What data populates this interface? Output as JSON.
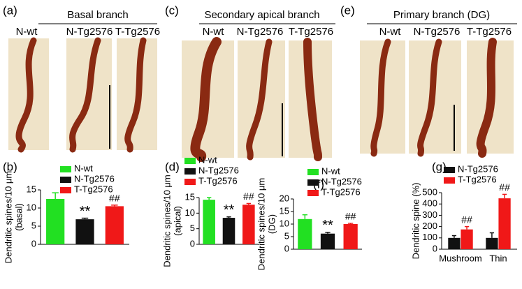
{
  "panels": [
    {
      "label": "(a)",
      "title": "Basal branch",
      "columns": [
        "N-wt",
        "N-Tg2576",
        "T-Tg2576"
      ]
    },
    {
      "label": "(c)",
      "title": "Secondary apical branch",
      "columns": [
        "N-wt",
        "N-Tg2576",
        "T-Tg2576"
      ]
    },
    {
      "label": "(e)",
      "title": "Primary branch (DG)",
      "columns": [
        "N-wt",
        "N-Tg2576",
        "T-Tg2576"
      ]
    }
  ],
  "chart_data": [
    {
      "type": "bar",
      "label": "(b)",
      "ylabel": [
        "Dendritic spines/10 μm",
        "(basal)"
      ],
      "ylim": [
        0,
        15
      ],
      "yticks": [
        0,
        5,
        10,
        15
      ],
      "series": [
        {
          "name": "N-wt",
          "color": "#22e022",
          "values": [
            12.5
          ],
          "errors": [
            1.7
          ],
          "annotations": [
            null
          ]
        },
        {
          "name": "N-Tg2576",
          "color": "#111111",
          "values": [
            6.9
          ],
          "errors": [
            0.3
          ],
          "annotations": [
            "**"
          ]
        },
        {
          "name": "T-Tg2576",
          "color": "#f01818",
          "values": [
            10.5
          ],
          "errors": [
            0.3
          ],
          "annotations": [
            "##"
          ]
        }
      ]
    },
    {
      "type": "bar",
      "label": "(d)",
      "ylabel": [
        "Dendritic spines/10 μm",
        "(apical)"
      ],
      "ylim": [
        0,
        15
      ],
      "yticks": [
        0,
        5,
        10,
        15
      ],
      "series": [
        {
          "name": "N-wt",
          "color": "#22e022",
          "values": [
            14.3
          ],
          "errors": [
            0.7
          ],
          "annotations": [
            null
          ]
        },
        {
          "name": "N-Tg2576",
          "color": "#111111",
          "values": [
            8.5
          ],
          "errors": [
            0.3
          ],
          "annotations": [
            "**"
          ]
        },
        {
          "name": "T-Tg2576",
          "color": "#f01818",
          "values": [
            12.7
          ],
          "errors": [
            0.4
          ],
          "annotations": [
            "##"
          ]
        }
      ]
    },
    {
      "type": "bar",
      "label": "(f)",
      "ylabel": [
        "Dendritic spines/10 μm",
        "(DG)"
      ],
      "ylim": [
        0,
        20
      ],
      "yticks": [
        0,
        5,
        10,
        15,
        20
      ],
      "series": [
        {
          "name": "N-wt",
          "color": "#22e022",
          "values": [
            12
          ],
          "errors": [
            1.7
          ],
          "annotations": [
            null
          ]
        },
        {
          "name": "N-Tg2576",
          "color": "#111111",
          "values": [
            6.2
          ],
          "errors": [
            0.5
          ],
          "annotations": [
            "**"
          ]
        },
        {
          "name": "T-Tg2576",
          "color": "#f01818",
          "values": [
            10
          ],
          "errors": [
            0.3
          ],
          "annotations": [
            "##"
          ]
        }
      ]
    },
    {
      "type": "bar",
      "label": "(g)",
      "ylabel": [
        "Dendritic spine (%)"
      ],
      "categories": [
        "Mushroom",
        "Thin"
      ],
      "ylim": [
        0,
        500
      ],
      "yticks": [
        0,
        100,
        200,
        300,
        400,
        500
      ],
      "series": [
        {
          "name": "N-Tg2576",
          "color": "#111111",
          "values": [
            100,
            100
          ],
          "errors": [
            20,
            45
          ],
          "annotations": [
            null,
            null
          ]
        },
        {
          "name": "T-Tg2576",
          "color": "#f01818",
          "values": [
            175,
            450
          ],
          "errors": [
            25,
            35
          ],
          "annotations": [
            "##",
            "##"
          ]
        }
      ]
    }
  ]
}
